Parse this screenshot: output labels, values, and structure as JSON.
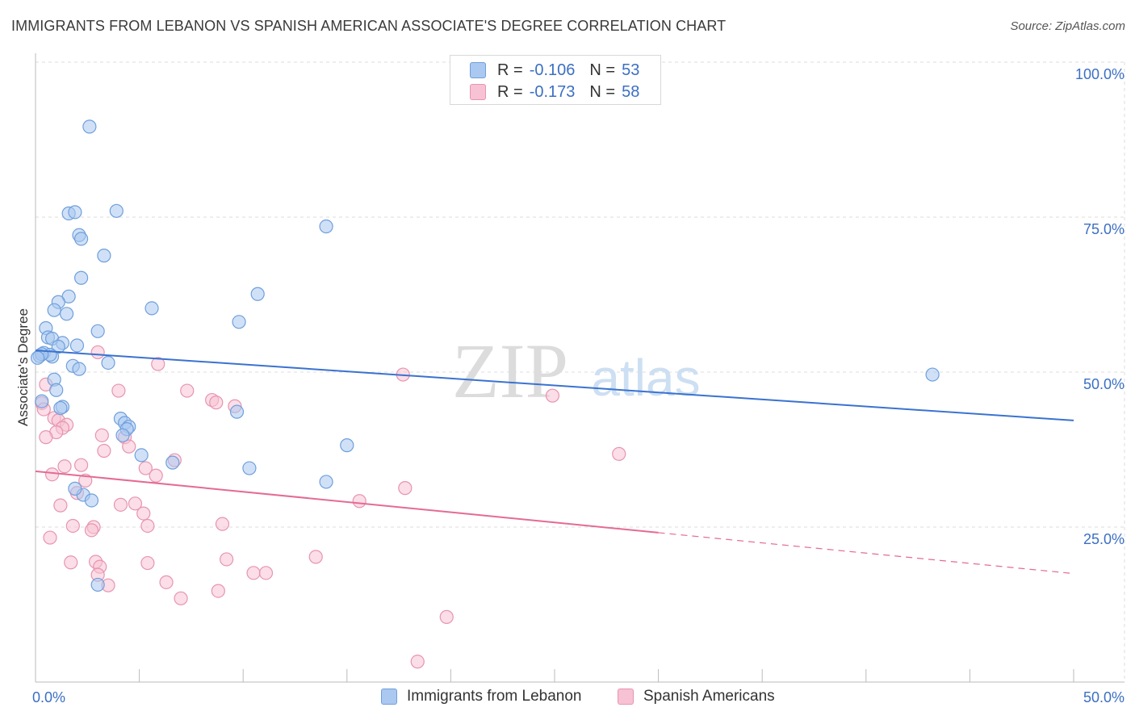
{
  "title": "IMMIGRANTS FROM LEBANON VS SPANISH AMERICAN ASSOCIATE'S DEGREE CORRELATION CHART",
  "source": "Source: ZipAtlas.com",
  "watermark": {
    "zip": "ZIP",
    "atlas": "atlas"
  },
  "legend": {
    "r_label": "R =",
    "n_label": "N =",
    "series": [
      {
        "name": "Immigrants from Lebanon",
        "r": "-0.106",
        "n": "53",
        "fill": "#aac8f0",
        "stroke": "#6f9fdc"
      },
      {
        "name": "Spanish Americans",
        "r": "-0.173",
        "n": "58",
        "fill": "#f7c2d3",
        "stroke": "#e794b0"
      }
    ]
  },
  "colors": {
    "blue_line": "#3a72d0",
    "pink_line": "#e46b94",
    "axis_text": "#3b6fc4",
    "grid": "#dddddd"
  },
  "chart_data": {
    "type": "scatter",
    "title": "IMMIGRANTS FROM LEBANON VS SPANISH AMERICAN ASSOCIATE'S DEGREE CORRELATION CHART",
    "xlabel": "",
    "ylabel": "Associate's Degree",
    "xlim": [
      0,
      50
    ],
    "ylim": [
      0,
      100
    ],
    "x_tick_labels": [
      "0.0%",
      "50.0%"
    ],
    "y_tick_labels": [
      "25.0%",
      "50.0%",
      "75.0%",
      "100.0%"
    ],
    "y_ticks": [
      25,
      50,
      75,
      100
    ],
    "series": [
      {
        "name": "Immigrants from Lebanon",
        "trend": {
          "x": [
            0,
            50
          ],
          "y": [
            53.5,
            42.2
          ],
          "dashed_from": null
        },
        "points": [
          [
            2.6,
            89.6
          ],
          [
            1.6,
            75.6
          ],
          [
            1.9,
            75.8
          ],
          [
            3.9,
            76.0
          ],
          [
            14.0,
            73.5
          ],
          [
            2.1,
            72.1
          ],
          [
            2.2,
            71.5
          ],
          [
            3.3,
            68.8
          ],
          [
            2.2,
            65.2
          ],
          [
            10.7,
            62.6
          ],
          [
            1.6,
            62.2
          ],
          [
            1.1,
            61.3
          ],
          [
            0.9,
            60.0
          ],
          [
            5.6,
            60.3
          ],
          [
            1.5,
            59.4
          ],
          [
            9.8,
            58.1
          ],
          [
            0.5,
            57.1
          ],
          [
            3.0,
            56.6
          ],
          [
            0.6,
            55.6
          ],
          [
            0.8,
            55.4
          ],
          [
            1.3,
            54.7
          ],
          [
            2.0,
            54.3
          ],
          [
            1.1,
            54.1
          ],
          [
            0.4,
            53.1
          ],
          [
            0.2,
            52.6
          ],
          [
            0.8,
            52.5
          ],
          [
            0.7,
            52.8
          ],
          [
            0.3,
            52.9
          ],
          [
            0.1,
            52.3
          ],
          [
            3.5,
            51.5
          ],
          [
            1.8,
            51.0
          ],
          [
            2.1,
            50.5
          ],
          [
            0.9,
            48.8
          ],
          [
            43.2,
            49.6
          ],
          [
            1.0,
            47.1
          ],
          [
            0.3,
            45.3
          ],
          [
            1.3,
            44.4
          ],
          [
            1.2,
            44.2
          ],
          [
            9.7,
            43.6
          ],
          [
            4.1,
            42.5
          ],
          [
            4.3,
            41.8
          ],
          [
            4.5,
            41.2
          ],
          [
            4.4,
            40.8
          ],
          [
            4.2,
            39.8
          ],
          [
            15.0,
            38.2
          ],
          [
            5.1,
            36.6
          ],
          [
            6.6,
            35.4
          ],
          [
            10.3,
            34.5
          ],
          [
            14.0,
            32.3
          ],
          [
            2.3,
            30.2
          ],
          [
            1.9,
            31.2
          ],
          [
            2.7,
            29.3
          ],
          [
            3.0,
            15.7
          ]
        ]
      },
      {
        "name": "Spanish Americans",
        "trend": {
          "x": [
            0,
            50
          ],
          "y": [
            34.0,
            17.5
          ],
          "dashed_from": 30.0
        },
        "points": [
          [
            3.0,
            53.2
          ],
          [
            5.9,
            51.3
          ],
          [
            17.7,
            49.6
          ],
          [
            0.5,
            48.0
          ],
          [
            4.0,
            47.0
          ],
          [
            7.3,
            47.0
          ],
          [
            24.9,
            46.2
          ],
          [
            8.5,
            45.5
          ],
          [
            8.7,
            45.1
          ],
          [
            9.6,
            44.5
          ],
          [
            0.3,
            45.0
          ],
          [
            0.4,
            44.0
          ],
          [
            0.9,
            42.6
          ],
          [
            1.1,
            42.2
          ],
          [
            1.5,
            41.5
          ],
          [
            1.3,
            41.0
          ],
          [
            1.0,
            40.3
          ],
          [
            0.5,
            39.5
          ],
          [
            3.2,
            39.8
          ],
          [
            4.3,
            39.5
          ],
          [
            4.5,
            38.0
          ],
          [
            3.3,
            37.3
          ],
          [
            28.1,
            36.8
          ],
          [
            6.7,
            35.8
          ],
          [
            2.2,
            35.0
          ],
          [
            1.4,
            34.8
          ],
          [
            5.3,
            34.5
          ],
          [
            0.8,
            33.5
          ],
          [
            5.8,
            33.3
          ],
          [
            2.4,
            32.5
          ],
          [
            17.8,
            31.3
          ],
          [
            2.0,
            30.5
          ],
          [
            15.6,
            29.2
          ],
          [
            4.1,
            28.6
          ],
          [
            4.8,
            28.8
          ],
          [
            1.2,
            28.5
          ],
          [
            5.2,
            27.2
          ],
          [
            9.0,
            25.5
          ],
          [
            5.4,
            25.2
          ],
          [
            1.8,
            25.2
          ],
          [
            2.8,
            25.0
          ],
          [
            2.7,
            24.5
          ],
          [
            0.7,
            23.3
          ],
          [
            13.5,
            20.2
          ],
          [
            9.2,
            19.8
          ],
          [
            1.7,
            19.3
          ],
          [
            2.9,
            19.4
          ],
          [
            5.4,
            19.2
          ],
          [
            3.1,
            18.6
          ],
          [
            10.5,
            17.6
          ],
          [
            11.1,
            17.6
          ],
          [
            3.0,
            17.3
          ],
          [
            6.3,
            16.1
          ],
          [
            3.5,
            15.6
          ],
          [
            8.8,
            14.7
          ],
          [
            7.0,
            13.5
          ],
          [
            19.8,
            10.5
          ],
          [
            18.4,
            3.3
          ]
        ]
      }
    ]
  }
}
